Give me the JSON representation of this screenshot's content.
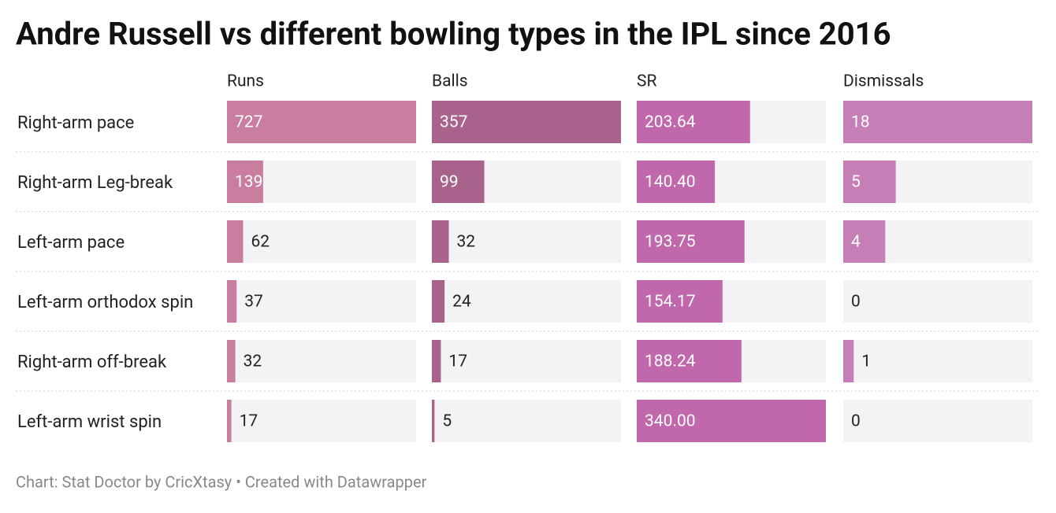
{
  "chart_data": {
    "type": "bar",
    "title": "Andre Russell vs different bowling types in the IPL since 2016",
    "categories": [
      "Right-arm pace",
      "Right-arm Leg-break",
      "Left-arm pace",
      "Left-arm orthodox spin",
      "Right-arm off-break",
      "Left-arm wrist spin"
    ],
    "series": [
      {
        "name": "Runs",
        "color": "#c97ea0",
        "values": [
          727,
          139,
          62,
          37,
          32,
          17
        ]
      },
      {
        "name": "Balls",
        "color": "#a9628b",
        "values": [
          357,
          99,
          32,
          24,
          17,
          5
        ]
      },
      {
        "name": "SR",
        "color": "#c068ab",
        "values": [
          203.64,
          140.4,
          193.75,
          154.17,
          188.24,
          340
        ],
        "value_labels": [
          "203.64",
          "140.40",
          "193.75",
          "154.17",
          "188.24",
          "340.00"
        ]
      },
      {
        "name": "Dismissals",
        "color": "#c67fb6",
        "values": [
          18,
          5,
          4,
          0,
          1,
          0
        ]
      }
    ],
    "note": "Chart: Stat Doctor by CricXtasy • Created with Datawrapper"
  }
}
